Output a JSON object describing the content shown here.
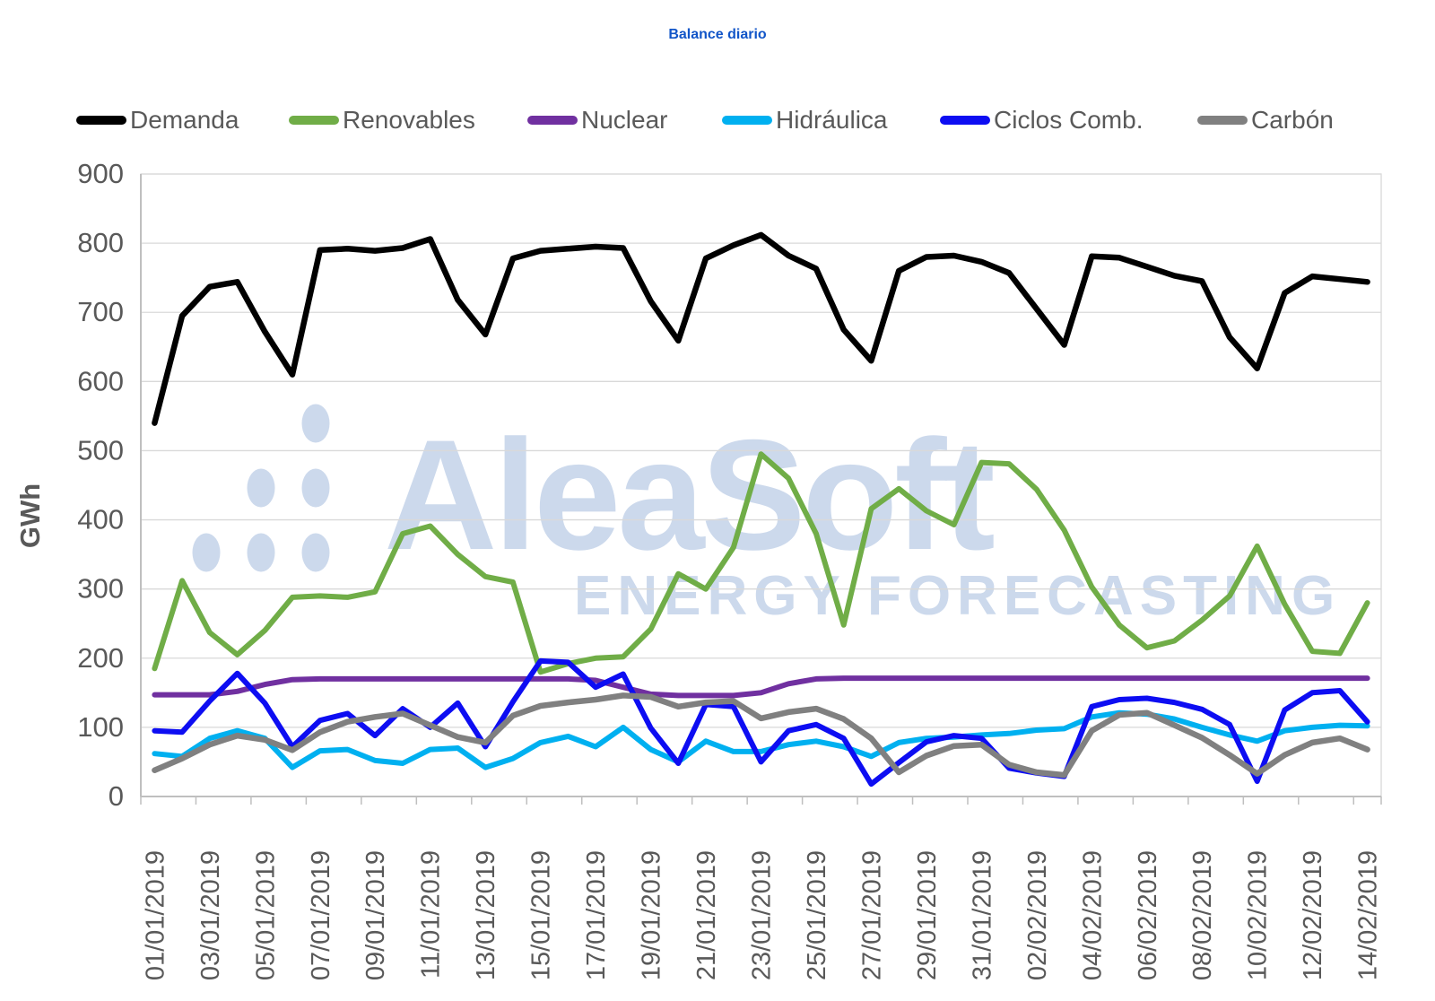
{
  "title": "Balance diario",
  "watermark": {
    "brand": "AleaSoft",
    "subtitle": "ENERGY FORECASTING",
    "color": "#ccd9ec"
  },
  "y_axis": {
    "title": "GWh",
    "ticks": [
      0,
      100,
      200,
      300,
      400,
      500,
      600,
      700,
      800,
      900
    ]
  },
  "x_axis": {
    "tick_labels": [
      "01/01/2019",
      "03/01/2019",
      "05/01/2019",
      "07/01/2019",
      "09/01/2019",
      "11/01/2019",
      "13/01/2019",
      "15/01/2019",
      "17/01/2019",
      "19/01/2019",
      "21/01/2019",
      "23/01/2019",
      "25/01/2019",
      "27/01/2019",
      "29/01/2019",
      "31/01/2019",
      "02/02/2019",
      "04/02/2019",
      "06/02/2019",
      "08/02/2019",
      "10/02/2019",
      "12/02/2019",
      "14/02/2019"
    ]
  },
  "legend": [
    {
      "label": "Demanda",
      "color": "#000000"
    },
    {
      "label": "Renovables",
      "color": "#70AD47"
    },
    {
      "label": "Nuclear",
      "color": "#7030A0"
    },
    {
      "label": "Hidráulica",
      "color": "#00B0F0"
    },
    {
      "label": "Ciclos Comb.",
      "color": "#0D0DF2"
    },
    {
      "label": "Carbón",
      "color": "#808080"
    }
  ],
  "chart_data": {
    "type": "line",
    "title": "Balance diario",
    "xlabel": "",
    "ylabel": "GWh",
    "ylim": [
      0,
      900
    ],
    "grid": true,
    "legend_position": "top",
    "x": [
      "01/01/2019",
      "02/01/2019",
      "03/01/2019",
      "04/01/2019",
      "05/01/2019",
      "06/01/2019",
      "07/01/2019",
      "08/01/2019",
      "09/01/2019",
      "10/01/2019",
      "11/01/2019",
      "12/01/2019",
      "13/01/2019",
      "14/01/2019",
      "15/01/2019",
      "16/01/2019",
      "17/01/2019",
      "18/01/2019",
      "19/01/2019",
      "20/01/2019",
      "21/01/2019",
      "22/01/2019",
      "23/01/2019",
      "24/01/2019",
      "25/01/2019",
      "26/01/2019",
      "27/01/2019",
      "28/01/2019",
      "29/01/2019",
      "30/01/2019",
      "31/01/2019",
      "01/02/2019",
      "02/02/2019",
      "03/02/2019",
      "04/02/2019",
      "05/02/2019",
      "06/02/2019",
      "07/02/2019",
      "08/02/2019",
      "09/02/2019",
      "10/02/2019",
      "11/02/2019",
      "12/02/2019",
      "13/02/2019",
      "14/02/2019"
    ],
    "series": [
      {
        "name": "Demanda",
        "color": "#000000",
        "width": 6.5,
        "values": [
          540,
          695,
          737,
          744,
          672,
          610,
          790,
          792,
          789,
          793,
          806,
          718,
          668,
          778,
          789,
          792,
          795,
          793,
          716,
          659,
          778,
          797,
          812,
          782,
          763,
          675,
          630,
          760,
          780,
          782,
          773,
          757,
          705,
          653,
          781,
          779,
          766,
          753,
          745,
          664,
          619,
          728,
          752,
          748,
          744
        ]
      },
      {
        "name": "Renovables",
        "color": "#70AD47",
        "width": 6,
        "values": [
          185,
          312,
          237,
          205,
          240,
          288,
          290,
          288,
          296,
          380,
          391,
          350,
          318,
          310,
          180,
          192,
          200,
          202,
          242,
          322,
          300,
          360,
          495,
          460,
          380,
          248,
          416,
          445,
          413,
          393,
          483,
          481,
          444,
          385,
          303,
          248,
          215,
          225,
          255,
          290,
          362,
          278,
          210,
          207,
          280
        ]
      },
      {
        "name": "Nuclear",
        "color": "#7030A0",
        "width": 6,
        "values": [
          147,
          147,
          147,
          152,
          162,
          169,
          170,
          170,
          170,
          170,
          170,
          170,
          170,
          170,
          170,
          170,
          168,
          158,
          148,
          146,
          146,
          146,
          150,
          163,
          170,
          171,
          171,
          171,
          171,
          171,
          171,
          171,
          171,
          171,
          171,
          171,
          171,
          171,
          171,
          171,
          171,
          171,
          171,
          171,
          171
        ]
      },
      {
        "name": "Hidráulica",
        "color": "#00B0F0",
        "width": 6,
        "values": [
          62,
          58,
          84,
          95,
          84,
          42,
          66,
          68,
          52,
          48,
          68,
          70,
          42,
          55,
          78,
          87,
          72,
          100,
          68,
          50,
          80,
          65,
          65,
          75,
          80,
          72,
          58,
          78,
          84,
          86,
          89,
          91,
          96,
          98,
          115,
          121,
          119,
          112,
          100,
          89,
          80,
          95,
          100,
          103,
          102
        ]
      },
      {
        "name": "Ciclos Comb.",
        "color": "#0D0DF2",
        "width": 6,
        "values": [
          95,
          93,
          138,
          178,
          135,
          72,
          110,
          120,
          88,
          127,
          100,
          135,
          72,
          137,
          196,
          194,
          158,
          177,
          99,
          48,
          133,
          130,
          50,
          95,
          104,
          84,
          18,
          49,
          79,
          88,
          84,
          41,
          34,
          29,
          130,
          140,
          142,
          136,
          126,
          104,
          22,
          125,
          150,
          153,
          108
        ]
      },
      {
        "name": "Carbón",
        "color": "#808080",
        "width": 6.5,
        "values": [
          38,
          55,
          75,
          88,
          82,
          67,
          93,
          108,
          115,
          120,
          103,
          86,
          78,
          117,
          131,
          136,
          140,
          146,
          144,
          130,
          136,
          138,
          113,
          122,
          127,
          112,
          84,
          35,
          59,
          73,
          75,
          46,
          35,
          31,
          95,
          118,
          121,
          103,
          85,
          60,
          33,
          60,
          78,
          84,
          68
        ]
      }
    ]
  }
}
